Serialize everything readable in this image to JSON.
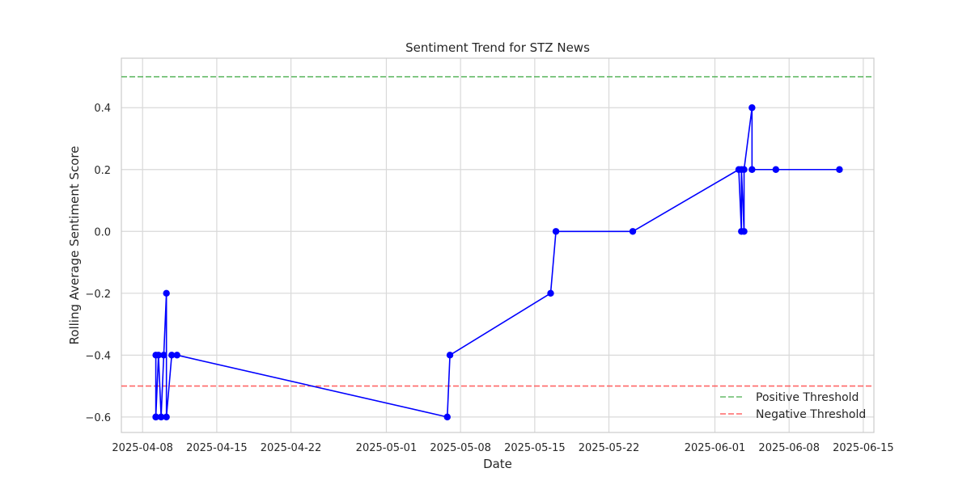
{
  "chart_data": {
    "type": "line",
    "title": "Sentiment Trend for STZ News",
    "xlabel": "Date",
    "ylabel": "Rolling Average Sentiment Score",
    "xlim": [
      "2025-04-06",
      "2025-06-16"
    ],
    "ylim": [
      -0.65,
      0.56
    ],
    "grid": true,
    "legend_position": "bottom-right",
    "x_ticks": [
      "2025-04-08",
      "2025-04-15",
      "2025-04-22",
      "2025-05-01",
      "2025-05-08",
      "2025-05-15",
      "2025-05-22",
      "2025-06-01",
      "2025-06-08",
      "2025-06-15"
    ],
    "y_ticks": [
      -0.6,
      -0.4,
      -0.2,
      0.0,
      0.2,
      0.4
    ],
    "y_tick_labels": [
      "−0.6",
      "−0.4",
      "−0.2",
      "0.0",
      "0.2",
      "0.4"
    ],
    "series": [
      {
        "name": "",
        "color": "#0000ff",
        "marker": "circle",
        "points": [
          {
            "x": "2025-04-09T06:00",
            "y": -0.6
          },
          {
            "x": "2025-04-09T06:00",
            "y": -0.4
          },
          {
            "x": "2025-04-09T06:00",
            "y": -0.6
          },
          {
            "x": "2025-04-09T12:00",
            "y": -0.4
          },
          {
            "x": "2025-04-09T18:00",
            "y": -0.6
          },
          {
            "x": "2025-04-10T00:00",
            "y": -0.4
          },
          {
            "x": "2025-04-10T06:00",
            "y": -0.2
          },
          {
            "x": "2025-04-10T06:00",
            "y": -0.6
          },
          {
            "x": "2025-04-10T18:00",
            "y": -0.4
          },
          {
            "x": "2025-04-11T06:00",
            "y": -0.4
          },
          {
            "x": "2025-05-06T18:00",
            "y": -0.6
          },
          {
            "x": "2025-05-07T00:00",
            "y": -0.4
          },
          {
            "x": "2025-05-16T12:00",
            "y": -0.2
          },
          {
            "x": "2025-05-17T00:00",
            "y": 0.0
          },
          {
            "x": "2025-05-24T06:00",
            "y": 0.0
          },
          {
            "x": "2025-06-03T06:00",
            "y": 0.2
          },
          {
            "x": "2025-06-03T12:00",
            "y": 0.0
          },
          {
            "x": "2025-06-03T12:00",
            "y": 0.2
          },
          {
            "x": "2025-06-03T18:00",
            "y": 0.0
          },
          {
            "x": "2025-06-03T18:00",
            "y": 0.2
          },
          {
            "x": "2025-06-04T12:00",
            "y": 0.4
          },
          {
            "x": "2025-06-04T12:00",
            "y": 0.2
          },
          {
            "x": "2025-06-06T18:00",
            "y": 0.2
          },
          {
            "x": "2025-06-12T18:00",
            "y": 0.2
          }
        ]
      }
    ],
    "thresholds": [
      {
        "name": "Positive Threshold",
        "y": 0.5,
        "color": "#4caf50",
        "style": "dashed"
      },
      {
        "name": "Negative Threshold",
        "y": -0.5,
        "color": "#ff4d4d",
        "style": "dashed"
      }
    ],
    "legend": [
      "Positive Threshold",
      "Negative Threshold"
    ]
  }
}
